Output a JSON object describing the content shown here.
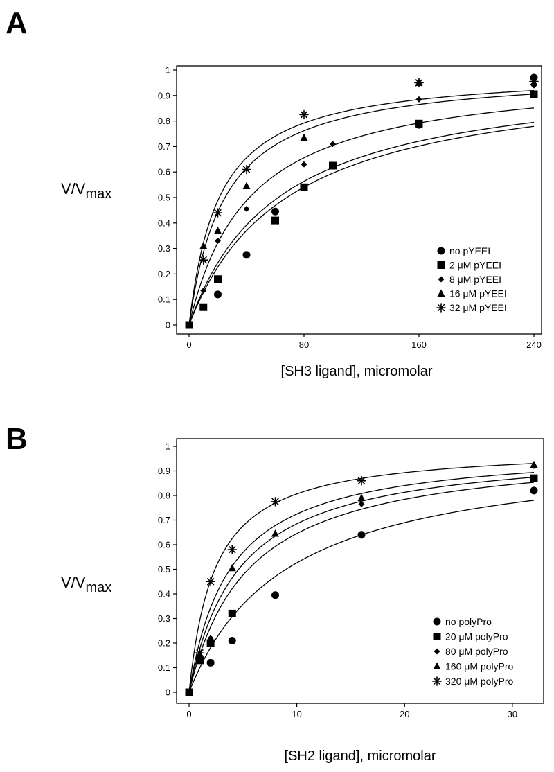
{
  "chart_data": [
    {
      "type": "scatter",
      "panel_label": "A",
      "title": "",
      "xlabel": "[SH3 ligand], micromolar",
      "ylabel": "V/V",
      "ylabel_sub": "max",
      "xlim": [
        0,
        240
      ],
      "ylim": [
        0,
        1
      ],
      "xticks": [
        "0",
        "80",
        "160",
        "240"
      ],
      "yticks": [
        "0",
        "0.1",
        "0.2",
        "0.3",
        "0.4",
        "0.5",
        "0.6",
        "0.7",
        "0.8",
        "0.9",
        "1"
      ],
      "grid": false,
      "legend_position": "bottom-right",
      "series": [
        {
          "name": "no pYEEI",
          "marker": "circle",
          "km": 68,
          "points": [
            [
              0,
              0
            ],
            [
              20,
              0.12
            ],
            [
              40,
              0.275
            ],
            [
              60,
              0.445
            ],
            [
              160,
              0.785
            ],
            [
              240,
              0.97
            ]
          ]
        },
        {
          "name": "2 μM pYEEI",
          "marker": "square",
          "km": 62,
          "points": [
            [
              0,
              0
            ],
            [
              10,
              0.07
            ],
            [
              20,
              0.18
            ],
            [
              60,
              0.41
            ],
            [
              80,
              0.54
            ],
            [
              100,
              0.625
            ],
            [
              160,
              0.79
            ],
            [
              240,
              0.905
            ]
          ]
        },
        {
          "name": "8 μM pYEEI",
          "marker": "diamond",
          "km": 42,
          "points": [
            [
              10,
              0.135
            ],
            [
              20,
              0.33
            ],
            [
              40,
              0.455
            ],
            [
              80,
              0.63
            ],
            [
              100,
              0.71
            ],
            [
              160,
              0.885
            ],
            [
              240,
              0.94
            ]
          ]
        },
        {
          "name": "16 μM pYEEI",
          "marker": "triangle",
          "km": 25,
          "points": [
            [
              10,
              0.31
            ],
            [
              20,
              0.37
            ],
            [
              40,
              0.545
            ],
            [
              80,
              0.735
            ],
            [
              160,
              0.95
            ]
          ]
        },
        {
          "name": "32 μM pYEEI",
          "marker": "asterisk",
          "km": 21,
          "points": [
            [
              10,
              0.255
            ],
            [
              20,
              0.44
            ],
            [
              40,
              0.61
            ],
            [
              80,
              0.825
            ],
            [
              160,
              0.95
            ],
            [
              240,
              0.955
            ]
          ]
        }
      ]
    },
    {
      "type": "scatter",
      "panel_label": "B",
      "title": "",
      "xlabel": "[SH2 ligand], micromolar",
      "ylabel": "V/V",
      "ylabel_sub": "max",
      "xlim": [
        0,
        32
      ],
      "ylim": [
        0,
        1
      ],
      "xticks": [
        "0",
        "10",
        "20",
        "30"
      ],
      "yticks": [
        "0",
        "0.1",
        "0.2",
        "0.3",
        "0.4",
        "0.5",
        "0.6",
        "0.7",
        "0.8",
        "0.9",
        "1"
      ],
      "grid": false,
      "legend_position": "bottom-right",
      "series": [
        {
          "name": "no polyPro",
          "marker": "circle",
          "km": 9,
          "points": [
            [
              0,
              0
            ],
            [
              2,
              0.12
            ],
            [
              4,
              0.21
            ],
            [
              8,
              0.395
            ],
            [
              16,
              0.64
            ],
            [
              32,
              0.82
            ]
          ]
        },
        {
          "name": "20 μM polyPro",
          "marker": "square",
          "km": 5.5,
          "points": [
            [
              0,
              0
            ],
            [
              1,
              0.13
            ],
            [
              2,
              0.2
            ],
            [
              4,
              0.32
            ],
            [
              32,
              0.87
            ]
          ]
        },
        {
          "name": "80 μM polyPro",
          "marker": "diamond",
          "km": 4.6,
          "points": [
            [
              1,
              0.15
            ],
            [
              2,
              0.22
            ],
            [
              16,
              0.765
            ],
            [
              32,
              0.92
            ]
          ]
        },
        {
          "name": "160 μM polyPro",
          "marker": "triangle",
          "km": 3.8,
          "points": [
            [
              1,
              0.155
            ],
            [
              4,
              0.505
            ],
            [
              8,
              0.645
            ],
            [
              16,
              0.79
            ],
            [
              32,
              0.925
            ]
          ]
        },
        {
          "name": "320 μM polyPro",
          "marker": "asterisk",
          "km": 2.4,
          "points": [
            [
              1,
              0.16
            ],
            [
              2,
              0.45
            ],
            [
              4,
              0.58
            ],
            [
              8,
              0.775
            ],
            [
              16,
              0.86
            ]
          ]
        }
      ]
    }
  ]
}
